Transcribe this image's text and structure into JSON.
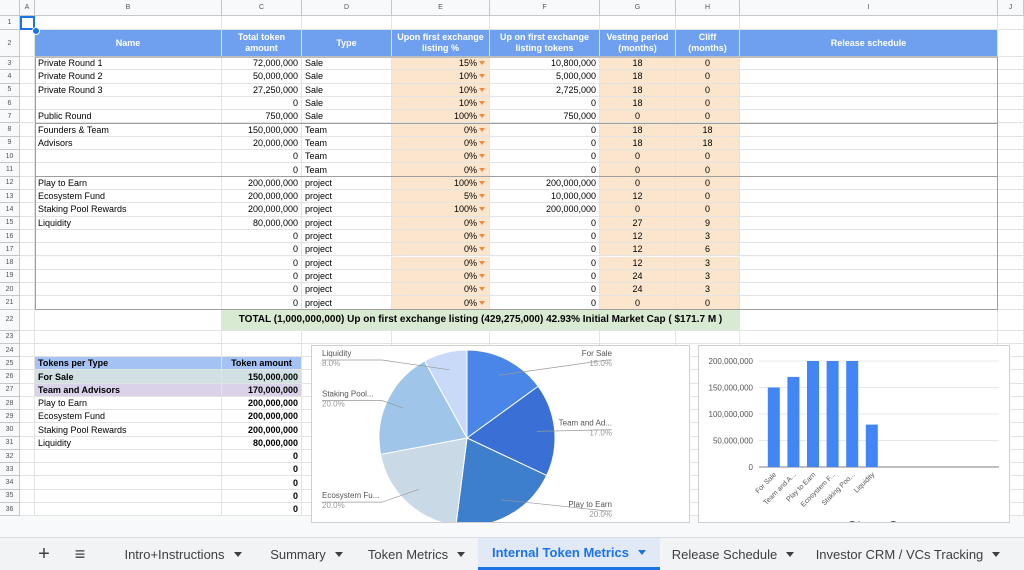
{
  "columns": [
    "A",
    "B",
    "C",
    "D",
    "E",
    "F",
    "G",
    "H",
    "I",
    "J"
  ],
  "row_numbers": [
    1,
    2,
    3,
    4,
    5,
    6,
    7,
    8,
    9,
    10,
    11,
    12,
    13,
    14,
    15,
    16,
    17,
    18,
    19,
    20,
    21,
    22,
    23,
    24,
    25,
    26,
    27,
    28,
    29,
    30,
    31,
    32,
    33,
    34,
    35,
    36
  ],
  "sheet": {
    "header": [
      "Name",
      "Total token amount",
      "Type",
      "Upon first exchange listing %",
      "Up on first exchange listing tokens",
      "Vesting period (months)",
      "Cliff (months)",
      "Release schedule"
    ],
    "rows": [
      [
        "Private Round 1",
        "72,000,000",
        "Sale",
        "15%",
        "10,800,000",
        "18",
        "0"
      ],
      [
        "Private Round 2",
        "50,000,000",
        "Sale",
        "10%",
        "5,000,000",
        "18",
        "0"
      ],
      [
        "Private Round 3",
        "27,250,000",
        "Sale",
        "10%",
        "2,725,000",
        "18",
        "0"
      ],
      [
        null,
        "0",
        "Sale",
        "10%",
        "0",
        "18",
        "0"
      ],
      [
        "Public Round",
        "750,000",
        "Sale",
        "100%",
        "750,000",
        "0",
        "0"
      ],
      [
        "Founders & Team",
        "150,000,000",
        "Team",
        "0%",
        "0",
        "18",
        "18"
      ],
      [
        "Advisors",
        "20,000,000",
        "Team",
        "0%",
        "0",
        "18",
        "18"
      ],
      [
        null,
        "0",
        "Team",
        "0%",
        "0",
        "0",
        "0"
      ],
      [
        null,
        "0",
        "Team",
        "0%",
        "0",
        "0",
        "0"
      ],
      [
        "Play to Earn",
        "200,000,000",
        "project",
        "100%",
        "200,000,000",
        "0",
        "0"
      ],
      [
        "Ecosystem Fund",
        "200,000,000",
        "project",
        "5%",
        "10,000,000",
        "12",
        "0"
      ],
      [
        "Staking Pool Rewards",
        "200,000,000",
        "project",
        "100%",
        "200,000,000",
        "0",
        "0"
      ],
      [
        "Liquidity",
        "80,000,000",
        "project",
        "0%",
        "0",
        "27",
        "9"
      ],
      [
        null,
        "0",
        "project",
        "0%",
        "0",
        "12",
        "3"
      ],
      [
        null,
        "0",
        "project",
        "0%",
        "0",
        "12",
        "6"
      ],
      [
        null,
        "0",
        "project",
        "0%",
        "0",
        "12",
        "3"
      ],
      [
        null,
        "0",
        "project",
        "0%",
        "0",
        "24",
        "3"
      ],
      [
        null,
        "0",
        "project",
        "0%",
        "0",
        "24",
        "3"
      ],
      [
        null,
        "0",
        "project",
        "0%",
        "0",
        "0",
        "0"
      ]
    ],
    "total": "TOTAL (1,000,000,000) Up on first exchange listing (429,275,000) 42.93% Initial Market Cap ( $171.7 M )",
    "summary_header": [
      "Tokens per Type",
      "Token amount"
    ],
    "summary_rows": [
      [
        "For Sale",
        "150,000,000"
      ],
      [
        "Team and Advisors",
        "170,000,000"
      ],
      [
        "Play to Earn",
        "200,000,000"
      ],
      [
        "Ecosystem Fund",
        "200,000,000"
      ],
      [
        "Staking Pool Rewards",
        "200,000,000"
      ],
      [
        "Liquidity",
        "80,000,000"
      ],
      [
        null,
        "0"
      ],
      [
        null,
        "0"
      ],
      [
        null,
        "0"
      ],
      [
        null,
        "0"
      ],
      [
        null,
        "0"
      ]
    ]
  },
  "chart_data": [
    {
      "type": "pie",
      "categories": [
        "For Sale",
        "Team and Ad...",
        "Play to Earn",
        "Ecosystem Fu...",
        "Staking Pool...",
        "Liquidity"
      ],
      "values": [
        15,
        17,
        20,
        20,
        20,
        8
      ],
      "value_labels": [
        "15.0%",
        "17.0%",
        "20.0%",
        "20.0%",
        "20.0%",
        "8.0%"
      ],
      "colors": [
        "#4a86e8",
        "#3a70d6",
        "#3d7fcc",
        "#c9d9e6",
        "#9fc5e8",
        "#c9daf8"
      ]
    },
    {
      "type": "bar",
      "title": "Tokens per Type",
      "categories": [
        "For Sale",
        "Team and A...",
        "Play to Earn",
        "Ecosystem F...",
        "Staking Poo...",
        "Liquidity"
      ],
      "values": [
        150000000,
        170000000,
        200000000,
        200000000,
        200000000,
        80000000
      ],
      "color": "#4285f4",
      "ylim": [
        0,
        200000000
      ],
      "yticks": [
        0,
        {
          "value": 50000000,
          "label": "50,000,000"
        },
        {
          "value": 100000000,
          "label": "100,000,000"
        },
        {
          "value": 150000000,
          "label": "150,000,000"
        },
        {
          "value": 200000000,
          "label": "200,000,000"
        }
      ],
      "grid": true
    }
  ],
  "tabs": [
    "Intro+Instructions",
    "Summary",
    "Token Metrics",
    "Internal Token Metrics",
    "Release Schedule",
    "Investor CRM / VCs Tracking"
  ]
}
